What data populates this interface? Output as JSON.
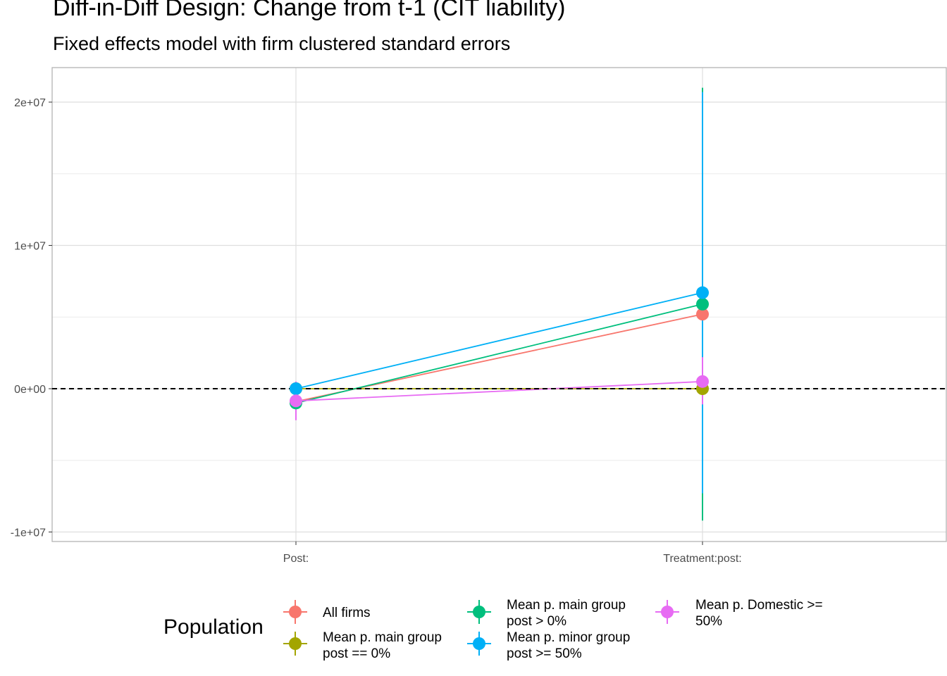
{
  "header": {
    "title": "Diff-in-Diff Design: Change from t-1 (CIT liability)",
    "subtitle": "Fixed effects model with firm clustered standard errors"
  },
  "legend": {
    "title": "Population",
    "items": [
      {
        "label": "All firms",
        "color": "#F8766D"
      },
      {
        "label": "Mean p. main group post == 0%",
        "color": "#A3A500"
      },
      {
        "label": "Mean p. main group post > 0%",
        "color": "#00BF7D"
      },
      {
        "label": "Mean p. minor group post >= 50%",
        "color": "#00B0F6"
      },
      {
        "label": "Mean p. Domestic >= 50%",
        "color": "#E76BF3"
      }
    ]
  },
  "chart_data": {
    "type": "scatter",
    "title": "Diff-in-Diff Design: Change from t-1 (CIT liability)",
    "subtitle": "Fixed effects model with firm clustered standard errors",
    "categories": [
      "Post:",
      "Treatment:post:"
    ],
    "y_ticks": [
      -10000000,
      0,
      10000000,
      20000000
    ],
    "y_tick_labels": [
      "-1e+07",
      "0e+00",
      "1e+07",
      "2e+07"
    ],
    "ylim": [
      -10700000,
      22500000
    ],
    "reference_line": {
      "y": 0,
      "style": "dashed"
    },
    "grid": true,
    "legend_position": "bottom",
    "connect_points": true,
    "series": [
      {
        "name": "All firms",
        "color": "#F8766D",
        "values": [
          -900000,
          5200000
        ],
        "lower": [
          -1600000,
          4900000
        ],
        "upper": [
          -200000,
          5500000
        ]
      },
      {
        "name": "Mean p. main group post == 0%",
        "color": "#A3A500",
        "values": [
          0,
          0
        ],
        "lower": [
          -100000,
          -150000
        ],
        "upper": [
          100000,
          150000
        ]
      },
      {
        "name": "Mean p. main group post > 0%",
        "color": "#00BF7D",
        "values": [
          -1000000,
          5900000
        ],
        "lower": [
          -1700000,
          -9200000
        ],
        "upper": [
          -300000,
          21000000
        ]
      },
      {
        "name": "Mean p. minor group post >= 50%",
        "color": "#00B0F6",
        "values": [
          0,
          6700000
        ],
        "lower": [
          -300000,
          -7300000
        ],
        "upper": [
          300000,
          20700000
        ]
      },
      {
        "name": "Mean p. Domestic >= 50%",
        "color": "#E76BF3",
        "values": [
          -850000,
          500000
        ],
        "lower": [
          -2200000,
          -1100000
        ],
        "upper": [
          500000,
          2200000
        ]
      }
    ]
  }
}
